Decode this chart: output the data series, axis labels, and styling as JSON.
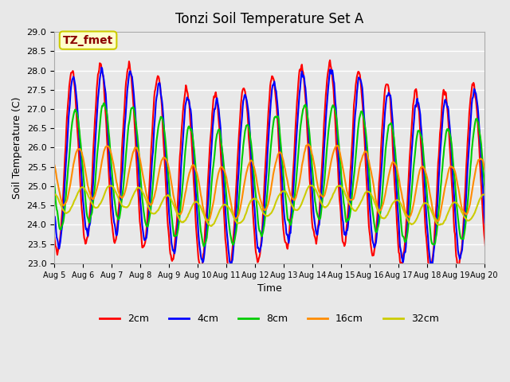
{
  "title": "Tonzi Soil Temperature Set A",
  "xlabel": "Time",
  "ylabel": "Soil Temperature (C)",
  "ylim": [
    23.0,
    29.0
  ],
  "yticks": [
    23.0,
    23.5,
    24.0,
    24.5,
    25.0,
    25.5,
    26.0,
    26.5,
    27.0,
    27.5,
    28.0,
    28.5,
    29.0
  ],
  "xtick_labels": [
    "Aug 5",
    "Aug 6",
    "Aug 7",
    "Aug 8",
    "Aug 9",
    "Aug 10",
    "Aug 11",
    "Aug 12",
    "Aug 13",
    "Aug 14",
    "Aug 15",
    "Aug 16",
    "Aug 17",
    "Aug 18",
    "Aug 19",
    "Aug 20"
  ],
  "annotation_text": "TZ_fmet",
  "annotation_color": "#8B0000",
  "annotation_bg": "#FFFFCC",
  "annotation_border": "#CCCC00",
  "colors": {
    "2cm": "#FF0000",
    "4cm": "#0000FF",
    "8cm": "#00CC00",
    "16cm": "#FF8C00",
    "32cm": "#CCCC00"
  },
  "legend_labels": [
    "2cm",
    "4cm",
    "8cm",
    "16cm",
    "32cm"
  ],
  "bg_color": "#E8E8E8",
  "plot_bg": "#E8E8E8",
  "grid_color": "#FFFFFF",
  "linewidth": 1.5
}
